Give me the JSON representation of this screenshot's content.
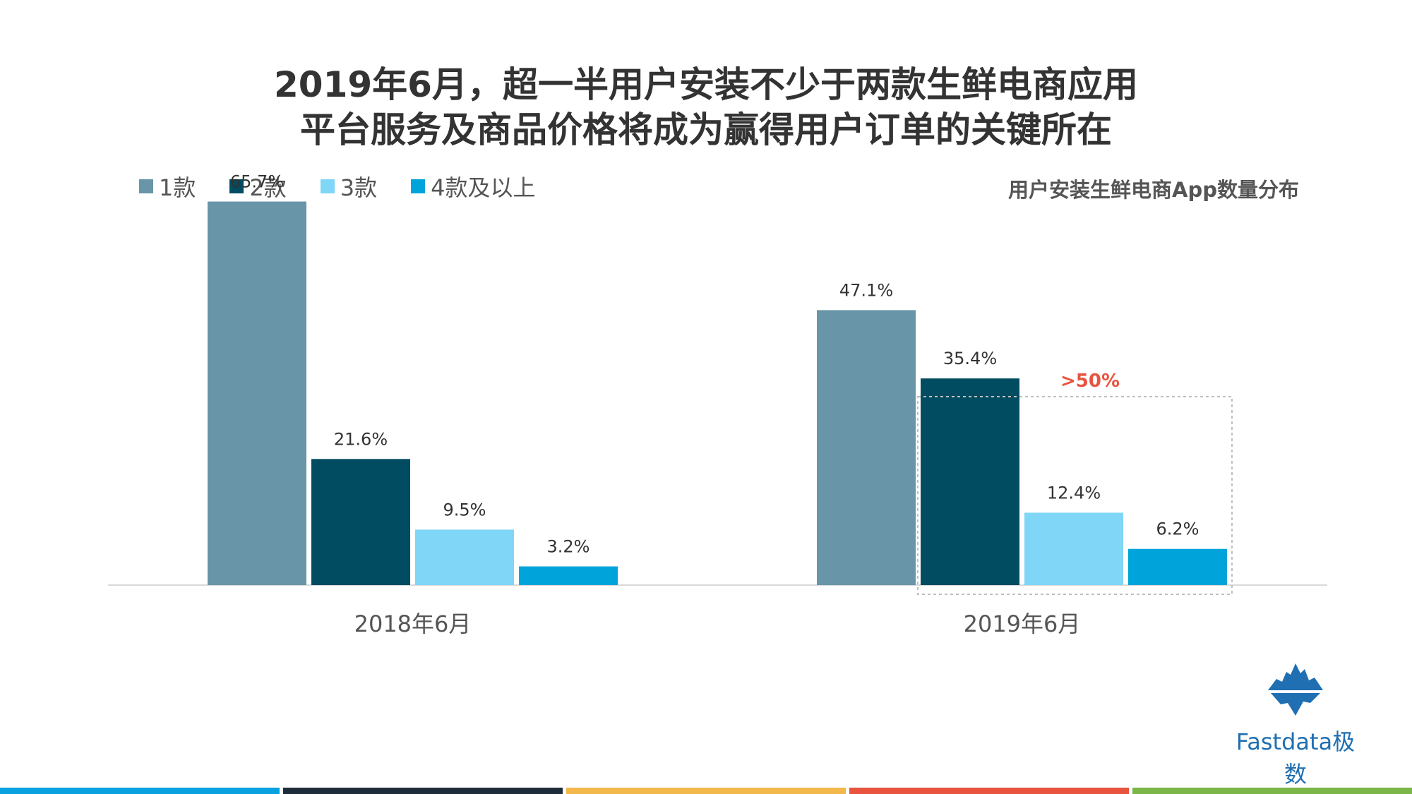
{
  "title_line1": "2019年6月，超一半用户安装不少于两款生鲜电商应用",
  "title_line2": "平台服务及商品价格将成为赢得用户订单的关键所在",
  "subtitle": "用户安装生鲜电商App数量分布",
  "legend": [
    {
      "label": "1款",
      "color": "#6895a8"
    },
    {
      "label": "2款",
      "color": "#014c61"
    },
    {
      "label": "3款",
      "color": "#7fd6f7"
    },
    {
      "label": "4款及以上",
      "color": "#00a4db"
    }
  ],
  "chart_data": {
    "type": "bar",
    "title": "用户安装生鲜电商App数量分布",
    "categories": [
      "2018年6月",
      "2019年6月"
    ],
    "series": [
      {
        "name": "1款",
        "values": [
          65.7,
          47.1
        ],
        "labels": [
          "65.7%",
          "47.1%"
        ]
      },
      {
        "name": "2款",
        "values": [
          21.6,
          35.4
        ],
        "labels": [
          "21.6%",
          "35.4%"
        ]
      },
      {
        "name": "3款",
        "values": [
          9.5,
          12.4
        ],
        "labels": [
          "9.5%",
          "12.4%"
        ]
      },
      {
        "name": "4款及以上",
        "values": [
          3.2,
          6.2
        ],
        "labels": [
          "3.2%",
          "6.2%"
        ]
      }
    ],
    "ylim": [
      0,
      70
    ],
    "annotation": ">50%",
    "annotation_color": "#e8543f",
    "xlabel": "",
    "ylabel": "",
    "grid": false
  },
  "logo": {
    "text": "Fastdata极数",
    "color": "#1f6fb2"
  },
  "bottom_bar_colors": [
    "#0aa1e0",
    "#1f2d3a",
    "#f2b84b",
    "#e8543f",
    "#7ab648"
  ]
}
